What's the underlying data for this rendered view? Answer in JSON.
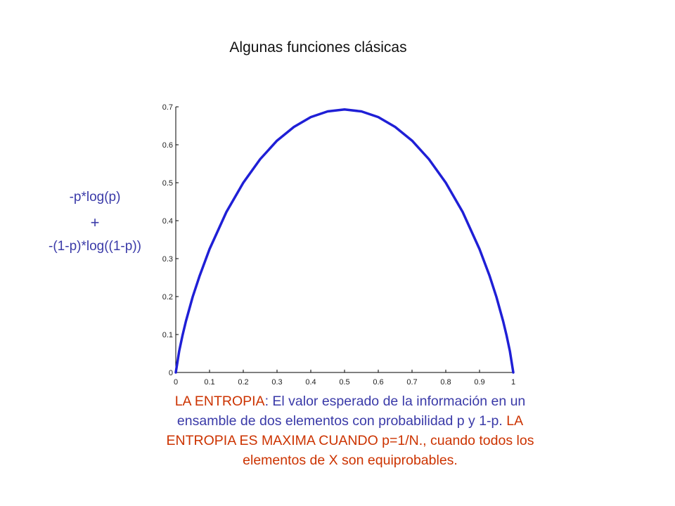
{
  "slide": {
    "title": "Algunas funciones clásicas",
    "formula": {
      "line1": "-p*log(p)",
      "line2": "+",
      "line3": "-(1-p)*log((1-p))"
    },
    "caption": {
      "part1": "LA ENTROPIA",
      "part2": ": El valor esperado de la información en un ensamble de dos elementos con probabilidad  p y 1-p.  ",
      "part3": "LA ENTROPIA ES MAXIMA CUANDO p=1/N., cuando todos los elementos de X son equiprobables."
    }
  },
  "colors": {
    "curve": "#1f1fd6",
    "formula_text": "#3a3aa8",
    "highlight_text": "#cc3300"
  },
  "chart_data": {
    "type": "line",
    "title": "",
    "xlabel": "",
    "ylabel": "",
    "xlim": [
      0,
      1
    ],
    "ylim": [
      0,
      0.7
    ],
    "xticks": [
      "0",
      "0.1",
      "0.2",
      "0.3",
      "0.4",
      "0.5",
      "0.6",
      "0.7",
      "0.8",
      "0.9",
      "1"
    ],
    "yticks": [
      "0",
      "0.1",
      "0.2",
      "0.3",
      "0.4",
      "0.5",
      "0.6",
      "0.7"
    ],
    "grid": false,
    "series": [
      {
        "color": "#1f1fd6",
        "x": [
          0.0,
          0.01,
          0.02,
          0.03,
          0.05,
          0.07,
          0.1,
          0.15,
          0.2,
          0.25,
          0.3,
          0.35,
          0.4,
          0.45,
          0.5,
          0.55,
          0.6,
          0.65,
          0.7,
          0.75,
          0.8,
          0.85,
          0.9,
          0.93,
          0.95,
          0.97,
          0.98,
          0.99,
          1.0
        ],
        "y": [
          0.0,
          0.056,
          0.098,
          0.135,
          0.199,
          0.253,
          0.325,
          0.423,
          0.5,
          0.562,
          0.611,
          0.647,
          0.673,
          0.688,
          0.693,
          0.688,
          0.673,
          0.647,
          0.611,
          0.562,
          0.5,
          0.423,
          0.325,
          0.254,
          0.199,
          0.135,
          0.098,
          0.056,
          0.0
        ]
      }
    ]
  }
}
